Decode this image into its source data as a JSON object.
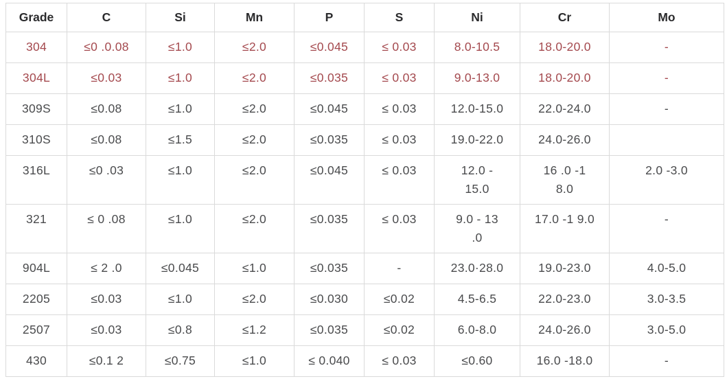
{
  "colors": {
    "highlight_text": "#a4494e",
    "header_text": "#2b2b2d",
    "body_text": "#4a4b4d",
    "border": "#dadada",
    "background": "#ffffff"
  },
  "table": {
    "columns": [
      "Grade",
      "C",
      "Si",
      "Mn",
      "P",
      "S",
      "Ni",
      "Cr",
      "Mo"
    ],
    "rows": [
      {
        "grade": "304",
        "highlight": true,
        "cells": [
          "≤0 .0.08",
          "≤1.0",
          "≤2.0",
          "≤0.045",
          "≤ 0.03",
          "8.0-10.5",
          "18.0-20.0",
          "-"
        ]
      },
      {
        "grade": "304L",
        "highlight": true,
        "cells": [
          "≤0.03",
          "≤1.0",
          "≤2.0",
          "≤0.035",
          "≤ 0.03",
          "9.0-13.0",
          "18.0-20.0",
          "-"
        ]
      },
      {
        "grade": "309S",
        "highlight": false,
        "cells": [
          "≤0.08",
          "≤1.0",
          "≤2.0",
          "≤0.045",
          "≤ 0.03",
          "12.0-15.0",
          "22.0-24.0",
          "-"
        ]
      },
      {
        "grade": "310S",
        "highlight": false,
        "cells": [
          "≤0.08",
          "≤1.5",
          "≤2.0",
          "≤0.035",
          "≤ 0.03",
          "19.0-22.0",
          "24.0-26.0",
          ""
        ]
      },
      {
        "grade": "316L",
        "highlight": false,
        "cells": [
          "≤0 .03",
          "≤1.0",
          "≤2.0",
          "≤0.045",
          "≤ 0.03",
          "12.0 -\n15.0",
          "16 .0 -1\n8.0",
          "2.0 -3.0"
        ]
      },
      {
        "grade": "321",
        "highlight": false,
        "cells": [
          "≤ 0 .08",
          "≤1.0",
          "≤2.0",
          "≤0.035",
          "≤ 0.03",
          "9.0 - 13\n.0",
          "17.0 -1 9.0",
          "-"
        ]
      },
      {
        "grade": "904L",
        "highlight": false,
        "cells": [
          "≤ 2 .0",
          "≤0.045",
          "≤1.0",
          "≤0.035",
          "-",
          "23.0·28.0",
          "19.0-23.0",
          "4.0-5.0"
        ]
      },
      {
        "grade": "2205",
        "highlight": false,
        "cells": [
          "≤0.03",
          "≤1.0",
          "≤2.0",
          "≤0.030",
          "≤0.02",
          "4.5-6.5",
          "22.0-23.0",
          "3.0-3.5"
        ]
      },
      {
        "grade": "2507",
        "highlight": false,
        "cells": [
          "≤0.03",
          "≤0.8",
          "≤1.2",
          "≤0.035",
          "≤0.02",
          "6.0-8.0",
          "24.0-26.0",
          "3.0-5.0"
        ]
      },
      {
        "grade": "430",
        "highlight": false,
        "cells": [
          "≤0.1 2",
          "≤0.75",
          "≤1.0",
          "≤ 0.040",
          "≤ 0.03",
          "≤0.60",
          "16.0 -18.0",
          "-"
        ]
      }
    ]
  }
}
